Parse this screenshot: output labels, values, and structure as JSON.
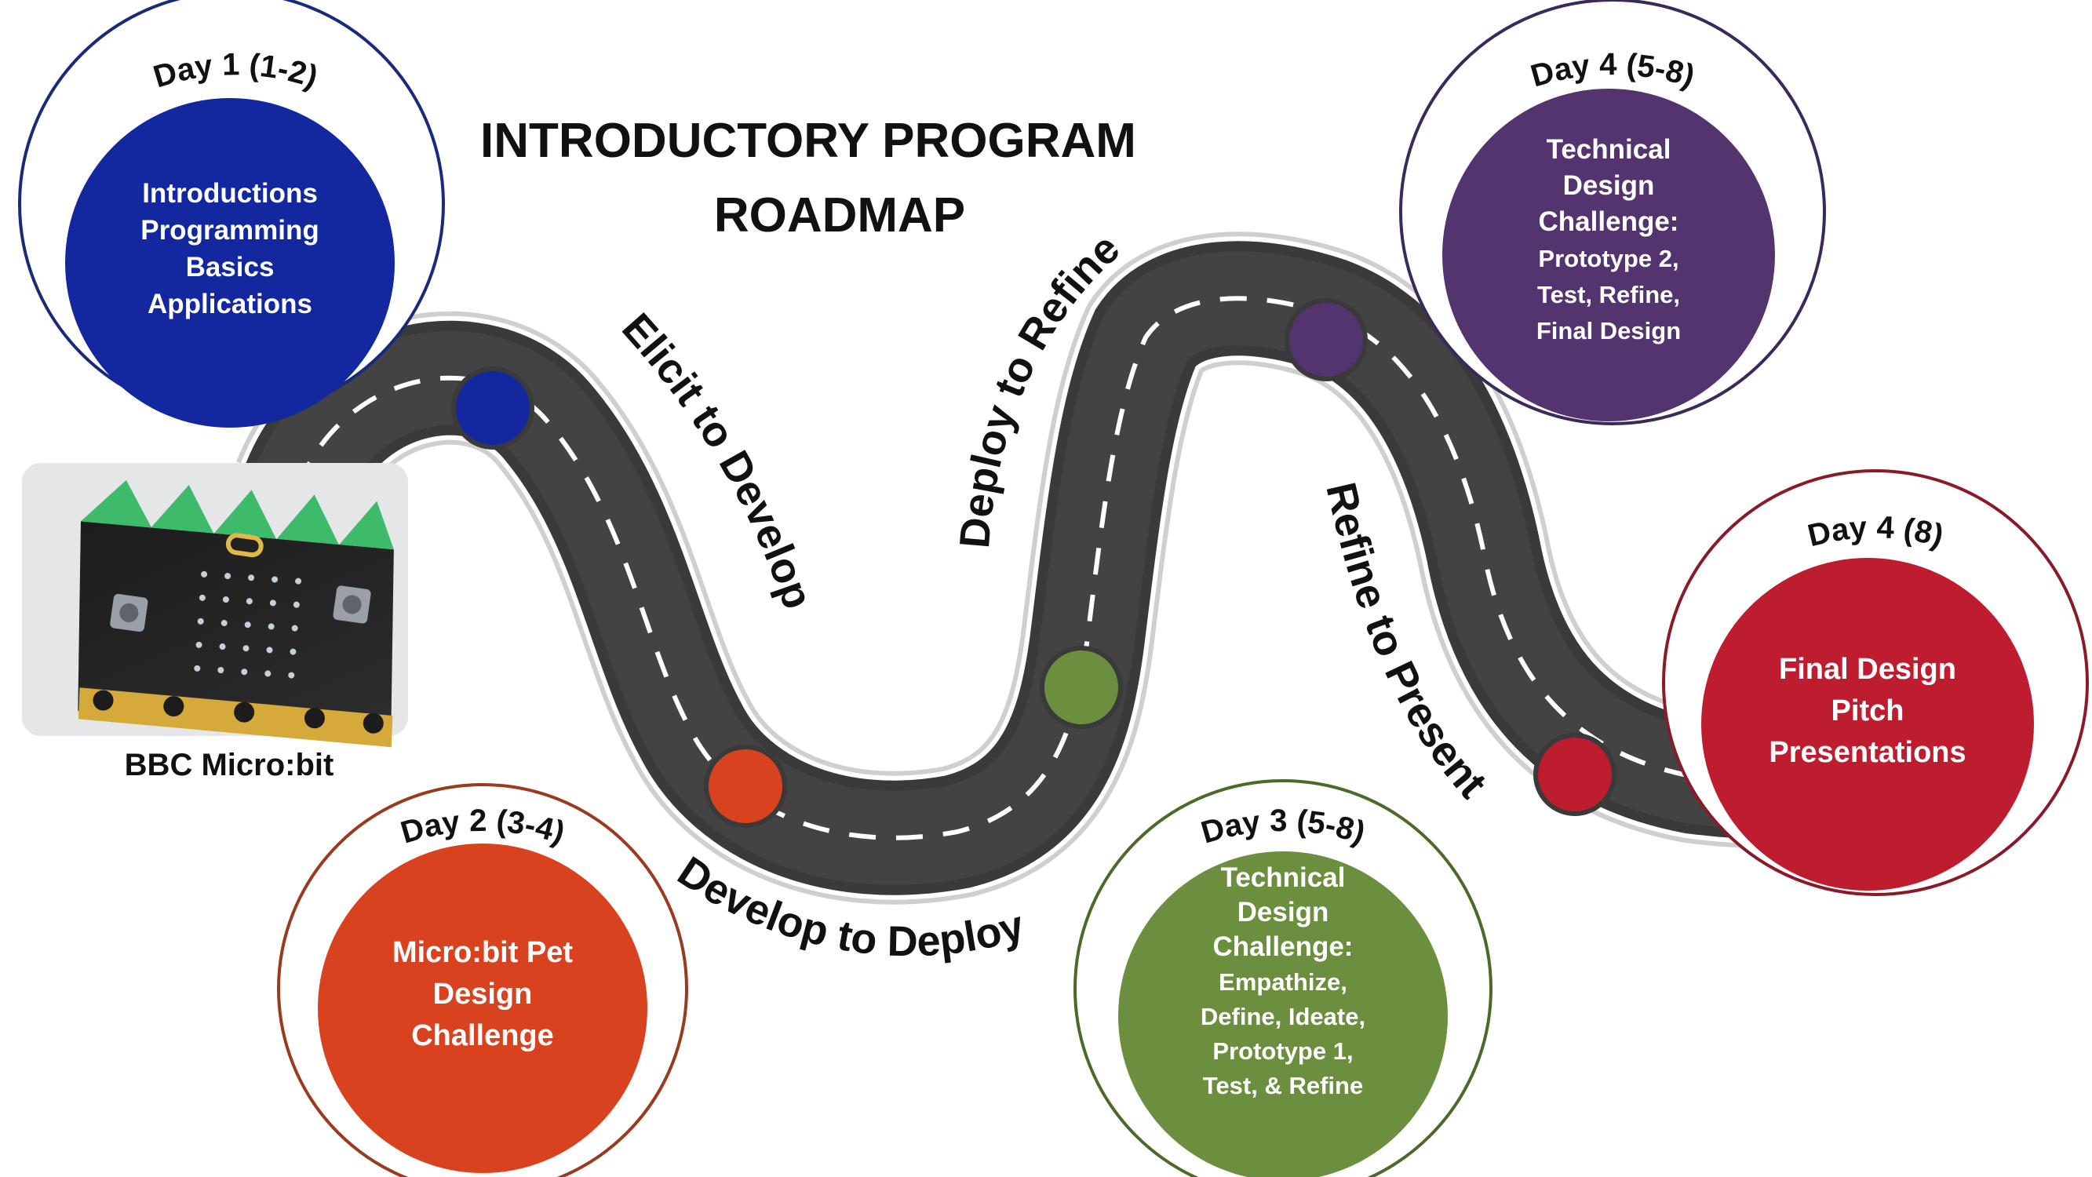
{
  "title": {
    "line1": "INTRODUCTORY PROGRAM",
    "line2": "ROADMAP"
  },
  "image_caption": "BBC Micro:bit",
  "road_labels": {
    "elicit": "Elicit to Develop",
    "develop": "Develop to Deploy",
    "deploy": "Deploy to Refine",
    "refine": "Refine to Present"
  },
  "milestones": [
    {
      "day": "Day 1 (1-2)",
      "lines": [
        "Introductions",
        "Programming",
        "Basics",
        "Applications"
      ],
      "color": "#13279e"
    },
    {
      "day": "Day 2 (3-4)",
      "lines": [
        "Micro:bit Pet",
        "Design",
        "Challenge"
      ],
      "color": "#d9421f"
    },
    {
      "day": "Day 3 (5-8)",
      "lines": [
        "Technical",
        "Design",
        "Challenge:",
        "Empathize,",
        "Define, Ideate,",
        "Prototype 1,",
        "Test, & Refine"
      ],
      "color": "#6c8f3f"
    },
    {
      "day": "Day 4 (5-8)",
      "lines": [
        "Technical",
        "Design",
        "Challenge:",
        "Prototype 2,",
        "Test, Refine,",
        "Final Design"
      ],
      "color": "#54346f"
    },
    {
      "day": "Day 4 (8)",
      "lines": [
        "Final Design",
        "Pitch",
        "Presentations"
      ],
      "color": "#be1d30"
    }
  ]
}
